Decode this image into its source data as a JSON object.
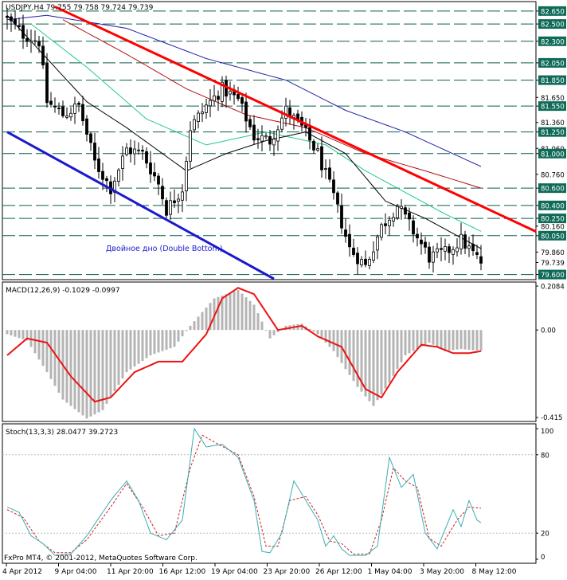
{
  "colors": {
    "background": "#ffffff",
    "frame": "#000000",
    "bull_candle": "#000000",
    "bear_candle": "#000000",
    "price_marker_bg": "#000000",
    "price_marker_text": "#ffffff",
    "level_line": "#0a5f4e",
    "level_box_bg": "#0f6b58",
    "level_box_text": "#ffffff",
    "resistance_trend": "#ff0000",
    "support_trend": "#1a1acc",
    "ma_blue": "#2222aa",
    "ma_darkred": "#b01010",
    "ma_green": "#22cc88",
    "ma_black": "#000000",
    "macd_hist": "#b4b4b4",
    "macd_signal": "#ee1111",
    "stoch_main": "#3aaeb4",
    "stoch_signal": "#cc2222",
    "annotation": "#1a1acc"
  },
  "main_panel": {
    "title": "USDJPY,H4  79.755 79.758 79.724 79.739",
    "current_price": "79.739",
    "annotation": "Двойное дно (Double Bottom)"
  },
  "macd_panel": {
    "title": "MACD(12,26,9) -0.1029 -0.0997"
  },
  "stoch_panel": {
    "title": "Stoch(13,3,3) 28.0477 39.2723"
  },
  "footer": {
    "copyright": "FxPro MT4, © 2001-2012, MetaQuotes Software Corp."
  },
  "chart_data": [
    {
      "type": "candlestick",
      "symbol": "USDJPY",
      "timeframe": "H4",
      "ylim": [
        79.55,
        82.75
      ],
      "y_ticks": [
        "82.650",
        "82.500",
        "82.300",
        "82.050",
        "81.850",
        "81.650",
        "81.550",
        "81.360",
        "81.250",
        "81.060",
        "81.000",
        "80.760",
        "80.600",
        "80.400",
        "80.250",
        "80.160",
        "80.050",
        "79.860",
        "79.739",
        "79.600"
      ],
      "levels": [
        "82.650",
        "82.500",
        "82.300",
        "82.050",
        "81.850",
        "81.550",
        "81.250",
        "81.000",
        "80.600",
        "80.400",
        "80.250",
        "80.050",
        "79.600"
      ],
      "x_ticks": [
        "4 Apr 2012",
        "9 Apr 04:00",
        "11 Apr 20:00",
        "16 Apr 12:00",
        "19 Apr 04:00",
        "23 Apr 20:00",
        "26 Apr 12:00",
        "1 May 04:00",
        "3 May 20:00",
        "8 May 12:00"
      ],
      "bar_count": 120,
      "close_anchors": [
        [
          0,
          82.55
        ],
        [
          4,
          82.38
        ],
        [
          8,
          82.3
        ],
        [
          10,
          81.6
        ],
        [
          14,
          81.45
        ],
        [
          18,
          81.55
        ],
        [
          22,
          80.9
        ],
        [
          26,
          80.6
        ],
        [
          30,
          81.05
        ],
        [
          34,
          81.0
        ],
        [
          38,
          80.65
        ],
        [
          40,
          80.35
        ],
        [
          44,
          80.6
        ],
        [
          46,
          81.3
        ],
        [
          50,
          81.55
        ],
        [
          54,
          81.75
        ],
        [
          58,
          81.62
        ],
        [
          62,
          81.2
        ],
        [
          66,
          81.15
        ],
        [
          70,
          81.5
        ],
        [
          74,
          81.3
        ],
        [
          78,
          81.0
        ],
        [
          82,
          80.5
        ],
        [
          86,
          79.9
        ],
        [
          90,
          79.7
        ],
        [
          94,
          80.15
        ],
        [
          98,
          80.4
        ],
        [
          102,
          80.1
        ],
        [
          106,
          79.8
        ],
        [
          110,
          79.85
        ],
        [
          114,
          80.0
        ],
        [
          119,
          79.74
        ]
      ],
      "trendlines": [
        {
          "name": "resistance",
          "points": [
            [
              12,
              82.7
            ],
            [
              135,
              80.05
            ]
          ]
        },
        {
          "name": "support",
          "points": [
            [
              0,
              81.25
            ],
            [
              67,
              79.55
            ]
          ]
        }
      ],
      "moving_averages": [
        {
          "name": "ma-blue",
          "points": [
            [
              0,
              82.55
            ],
            [
              10,
              82.6
            ],
            [
              30,
              82.45
            ],
            [
              50,
              82.1
            ],
            [
              70,
              81.85
            ],
            [
              85,
              81.5
            ],
            [
              100,
              81.25
            ],
            [
              119,
              80.85
            ]
          ]
        },
        {
          "name": "ma-darkred",
          "points": [
            [
              14,
              82.55
            ],
            [
              30,
              82.15
            ],
            [
              45,
              81.75
            ],
            [
              60,
              81.45
            ],
            [
              75,
              81.3
            ],
            [
              90,
              81.0
            ],
            [
              105,
              80.8
            ],
            [
              119,
              80.6
            ]
          ]
        },
        {
          "name": "ma-green",
          "points": [
            [
              6,
              82.5
            ],
            [
              20,
              82.0
            ],
            [
              35,
              81.4
            ],
            [
              50,
              81.1
            ],
            [
              65,
              81.25
            ],
            [
              80,
              81.1
            ],
            [
              90,
              80.8
            ],
            [
              100,
              80.55
            ],
            [
              110,
              80.3
            ],
            [
              119,
              80.1
            ]
          ]
        },
        {
          "name": "ma-black",
          "points": [
            [
              0,
              82.6
            ],
            [
              10,
              82.1
            ],
            [
              20,
              81.6
            ],
            [
              30,
              81.3
            ],
            [
              45,
              80.8
            ],
            [
              55,
              81.0
            ],
            [
              65,
              81.15
            ],
            [
              75,
              81.25
            ],
            [
              85,
              81.0
            ],
            [
              95,
              80.45
            ],
            [
              105,
              80.25
            ],
            [
              115,
              80.0
            ],
            [
              119,
              79.9
            ]
          ]
        }
      ]
    },
    {
      "type": "bar+line",
      "name": "MACD(12,26,9)",
      "ylim": [
        -0.43,
        0.22
      ],
      "y_ticks": [
        "0.2084",
        "0.00",
        "-0.415"
      ],
      "histogram_anchors": [
        [
          0,
          -0.02
        ],
        [
          5,
          -0.05
        ],
        [
          10,
          -0.2
        ],
        [
          14,
          -0.33
        ],
        [
          20,
          -0.42
        ],
        [
          24,
          -0.38
        ],
        [
          30,
          -0.2
        ],
        [
          36,
          -0.12
        ],
        [
          42,
          -0.08
        ],
        [
          46,
          0.02
        ],
        [
          52,
          0.15
        ],
        [
          58,
          0.19
        ],
        [
          62,
          0.12
        ],
        [
          66,
          -0.04
        ],
        [
          70,
          0.02
        ],
        [
          74,
          0.03
        ],
        [
          78,
          -0.02
        ],
        [
          82,
          -0.1
        ],
        [
          88,
          -0.27
        ],
        [
          92,
          -0.36
        ],
        [
          96,
          -0.25
        ],
        [
          100,
          -0.12
        ],
        [
          106,
          -0.06
        ],
        [
          110,
          -0.1
        ],
        [
          114,
          -0.09
        ],
        [
          119,
          -0.1
        ]
      ],
      "signal_anchors": [
        [
          0,
          -0.12
        ],
        [
          5,
          -0.04
        ],
        [
          10,
          -0.06
        ],
        [
          16,
          -0.22
        ],
        [
          22,
          -0.34
        ],
        [
          26,
          -0.32
        ],
        [
          32,
          -0.2
        ],
        [
          38,
          -0.15
        ],
        [
          44,
          -0.15
        ],
        [
          50,
          -0.02
        ],
        [
          54,
          0.15
        ],
        [
          58,
          0.2
        ],
        [
          62,
          0.17
        ],
        [
          68,
          0.0
        ],
        [
          74,
          0.02
        ],
        [
          78,
          -0.03
        ],
        [
          84,
          -0.08
        ],
        [
          90,
          -0.28
        ],
        [
          94,
          -0.32
        ],
        [
          98,
          -0.2
        ],
        [
          104,
          -0.07
        ],
        [
          108,
          -0.08
        ],
        [
          112,
          -0.11
        ],
        [
          116,
          -0.11
        ],
        [
          119,
          -0.1
        ]
      ]
    },
    {
      "type": "line",
      "name": "Stoch(13,3,3)",
      "ylim": [
        0,
        100
      ],
      "y_ticks": [
        "100",
        "80",
        "20",
        "0"
      ],
      "main_anchors": [
        [
          0,
          40
        ],
        [
          3,
          36
        ],
        [
          6,
          18
        ],
        [
          9,
          12
        ],
        [
          12,
          3
        ],
        [
          16,
          4
        ],
        [
          20,
          18
        ],
        [
          26,
          45
        ],
        [
          30,
          60
        ],
        [
          33,
          45
        ],
        [
          36,
          20
        ],
        [
          40,
          15
        ],
        [
          44,
          30
        ],
        [
          47,
          100
        ],
        [
          50,
          86
        ],
        [
          54,
          88
        ],
        [
          58,
          78
        ],
        [
          62,
          45
        ],
        [
          64,
          6
        ],
        [
          66,
          5
        ],
        [
          69,
          20
        ],
        [
          72,
          60
        ],
        [
          75,
          45
        ],
        [
          78,
          30
        ],
        [
          80,
          10
        ],
        [
          82,
          18
        ],
        [
          84,
          8
        ],
        [
          86,
          3
        ],
        [
          90,
          3
        ],
        [
          93,
          10
        ],
        [
          96,
          78
        ],
        [
          99,
          55
        ],
        [
          102,
          65
        ],
        [
          105,
          20
        ],
        [
          108,
          8
        ],
        [
          112,
          38
        ],
        [
          114,
          25
        ],
        [
          116,
          45
        ],
        [
          118,
          30
        ],
        [
          119,
          28
        ]
      ],
      "signal_anchors": [
        [
          0,
          38
        ],
        [
          4,
          32
        ],
        [
          8,
          14
        ],
        [
          12,
          5
        ],
        [
          16,
          5
        ],
        [
          20,
          15
        ],
        [
          26,
          40
        ],
        [
          30,
          58
        ],
        [
          34,
          40
        ],
        [
          38,
          18
        ],
        [
          42,
          20
        ],
        [
          46,
          70
        ],
        [
          49,
          95
        ],
        [
          53,
          88
        ],
        [
          58,
          80
        ],
        [
          62,
          48
        ],
        [
          65,
          10
        ],
        [
          68,
          10
        ],
        [
          71,
          45
        ],
        [
          75,
          48
        ],
        [
          78,
          34
        ],
        [
          81,
          14
        ],
        [
          84,
          12
        ],
        [
          87,
          4
        ],
        [
          91,
          4
        ],
        [
          94,
          30
        ],
        [
          97,
          70
        ],
        [
          100,
          60
        ],
        [
          103,
          55
        ],
        [
          106,
          16
        ],
        [
          109,
          10
        ],
        [
          113,
          30
        ],
        [
          116,
          40
        ],
        [
          119,
          39
        ]
      ]
    }
  ]
}
